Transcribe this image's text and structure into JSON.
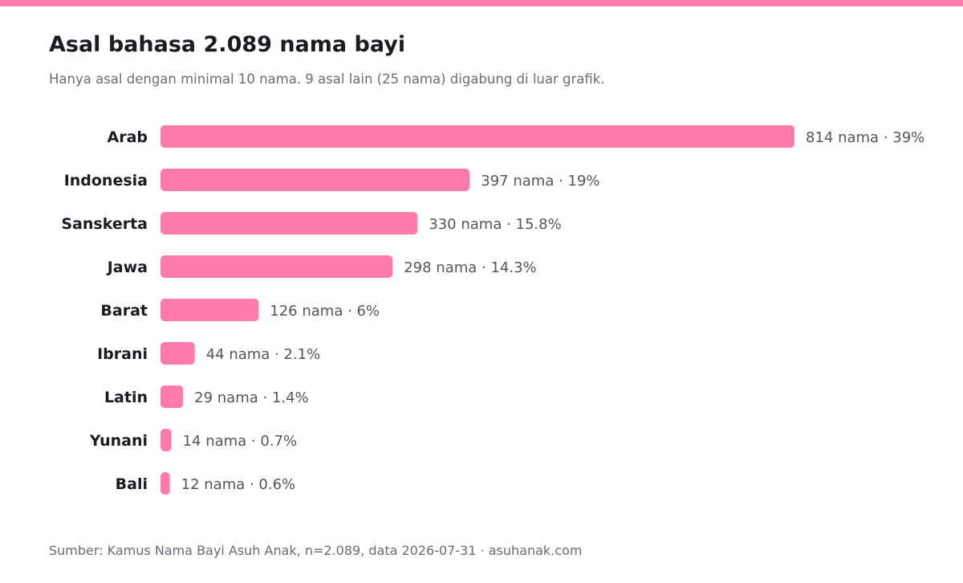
{
  "colors": {
    "accent": "#ff7bab",
    "title": "#1b1b22",
    "muted": "#6b6b7a"
  },
  "header": {
    "title": "Asal bahasa 2.089 nama bayi",
    "subtitle": "Hanya asal dengan minimal 10 nama. 9 asal lain (25 nama) digabung di luar grafik."
  },
  "footer": {
    "source": "Sumber: Kamus Nama Bayi Asuh Anak, n=2.089, data 2026-07-31 · asuhanak.com"
  },
  "chart_data": {
    "type": "bar",
    "orientation": "horizontal",
    "categories": [
      "Arab",
      "Indonesia",
      "Sanskerta",
      "Jawa",
      "Barat",
      "Ibrani",
      "Latin",
      "Yunani",
      "Bali"
    ],
    "values": [
      814,
      397,
      330,
      298,
      126,
      44,
      29,
      14,
      12
    ],
    "value_labels": [
      "814 nama · 39%",
      "397 nama · 19%",
      "330 nama · 15.8%",
      "298 nama · 14.3%",
      "126 nama · 6%",
      "44 nama · 2.1%",
      "29 nama · 1.4%",
      "14 nama · 0.7%",
      "12 nama · 0.6%"
    ],
    "xlim": [
      0,
      814
    ],
    "grid": false,
    "legend": "none"
  }
}
